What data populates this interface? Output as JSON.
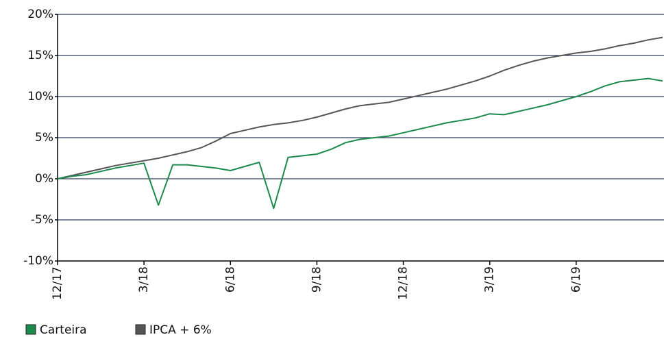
{
  "chart_data": {
    "type": "line",
    "categories": [
      "12/17",
      null,
      null,
      null,
      null,
      null,
      "3/18",
      null,
      null,
      null,
      null,
      null,
      "6/18",
      null,
      null,
      null,
      null,
      null,
      "9/18",
      null,
      null,
      null,
      null,
      null,
      "12/18",
      null,
      null,
      null,
      null,
      null,
      "3/19",
      null,
      null,
      null,
      null,
      null,
      "6/19",
      null,
      null,
      null,
      null,
      null,
      null
    ],
    "series": [
      {
        "name": "Carteira",
        "color": "#1b8a4c",
        "values": [
          0,
          0.3,
          0.5,
          0.9,
          1.3,
          1.6,
          1.9,
          -3.2,
          1.7,
          1.7,
          1.5,
          1.3,
          1.0,
          1.5,
          2.0,
          -3.6,
          2.6,
          2.8,
          3.0,
          3.6,
          4.4,
          4.8,
          5.0,
          5.2,
          5.6,
          6.0,
          6.4,
          6.8,
          7.1,
          7.4,
          7.9,
          7.8,
          8.2,
          8.6,
          9.0,
          9.5,
          10.0,
          10.6,
          11.3,
          11.8,
          12.0,
          12.2,
          11.9
        ]
      },
      {
        "name": "IPCA + 6%",
        "color": "#555555",
        "values": [
          0,
          0.4,
          0.8,
          1.2,
          1.6,
          1.9,
          2.2,
          2.5,
          2.9,
          3.3,
          3.8,
          4.6,
          5.5,
          5.9,
          6.3,
          6.6,
          6.8,
          7.1,
          7.5,
          8.0,
          8.5,
          8.9,
          9.1,
          9.3,
          9.7,
          10.1,
          10.5,
          10.9,
          11.4,
          11.9,
          12.5,
          13.2,
          13.8,
          14.3,
          14.7,
          15.0,
          15.3,
          15.5,
          15.8,
          16.2,
          16.5,
          16.9,
          17.2
        ]
      }
    ],
    "ylim": [
      -10,
      20
    ],
    "yticks": [
      {
        "value": -10,
        "label": "-10%"
      },
      {
        "value": -5,
        "label": "-5%"
      },
      {
        "value": 0,
        "label": "0%"
      },
      {
        "value": 5,
        "label": "5%"
      },
      {
        "value": 10,
        "label": "10%"
      },
      {
        "value": 15,
        "label": "15%"
      },
      {
        "value": 20,
        "label": "20%"
      }
    ],
    "grid": true,
    "legend": "bottom"
  }
}
